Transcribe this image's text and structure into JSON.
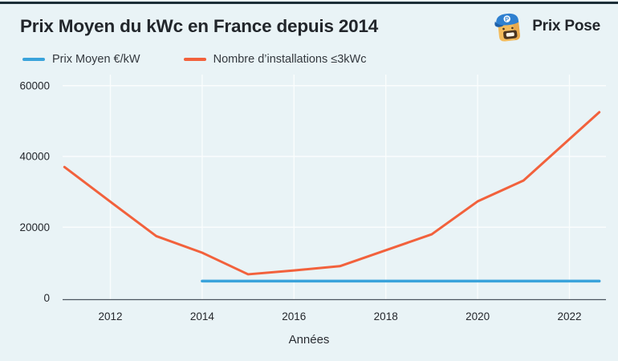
{
  "header": {
    "title": "Prix Moyen du kWc en France depuis 2014",
    "brand": "Prix Pose"
  },
  "legend": {
    "items": [
      {
        "label": "Prix Moyen €/kW",
        "color": "#3AA3DB"
      },
      {
        "label": "Nombre d’installations ≤3kWc",
        "color": "#F2613C"
      }
    ]
  },
  "chart_data": {
    "type": "line",
    "title": "Prix Moyen du kWc en France depuis 2014",
    "xlabel": "Années",
    "ylabel": "",
    "xlim": [
      2011,
      2022.8
    ],
    "ylim": [
      0,
      60000
    ],
    "x_ticks": [
      2012,
      2014,
      2016,
      2018,
      2020,
      2022
    ],
    "y_ticks": [
      0,
      20000,
      40000,
      60000
    ],
    "grid": true,
    "legend_position": "top-left",
    "background": "#E9F3F6",
    "series": [
      {
        "name": "Prix Moyen €/kW",
        "color": "#3AA3DB",
        "x": [
          2014,
          2022.65
        ],
        "values": [
          4800,
          4800
        ]
      },
      {
        "name": "Nombre d’installations ≤3kWc",
        "color": "#F2613C",
        "x": [
          2011,
          2012,
          2013,
          2014,
          2015,
          2016,
          2017,
          2018,
          2019,
          2020,
          2021,
          2022,
          2022.65
        ],
        "values": [
          37000,
          27200,
          17500,
          12800,
          6700,
          7800,
          9000,
          13500,
          18000,
          27300,
          33200,
          44900,
          52500
        ]
      }
    ]
  }
}
